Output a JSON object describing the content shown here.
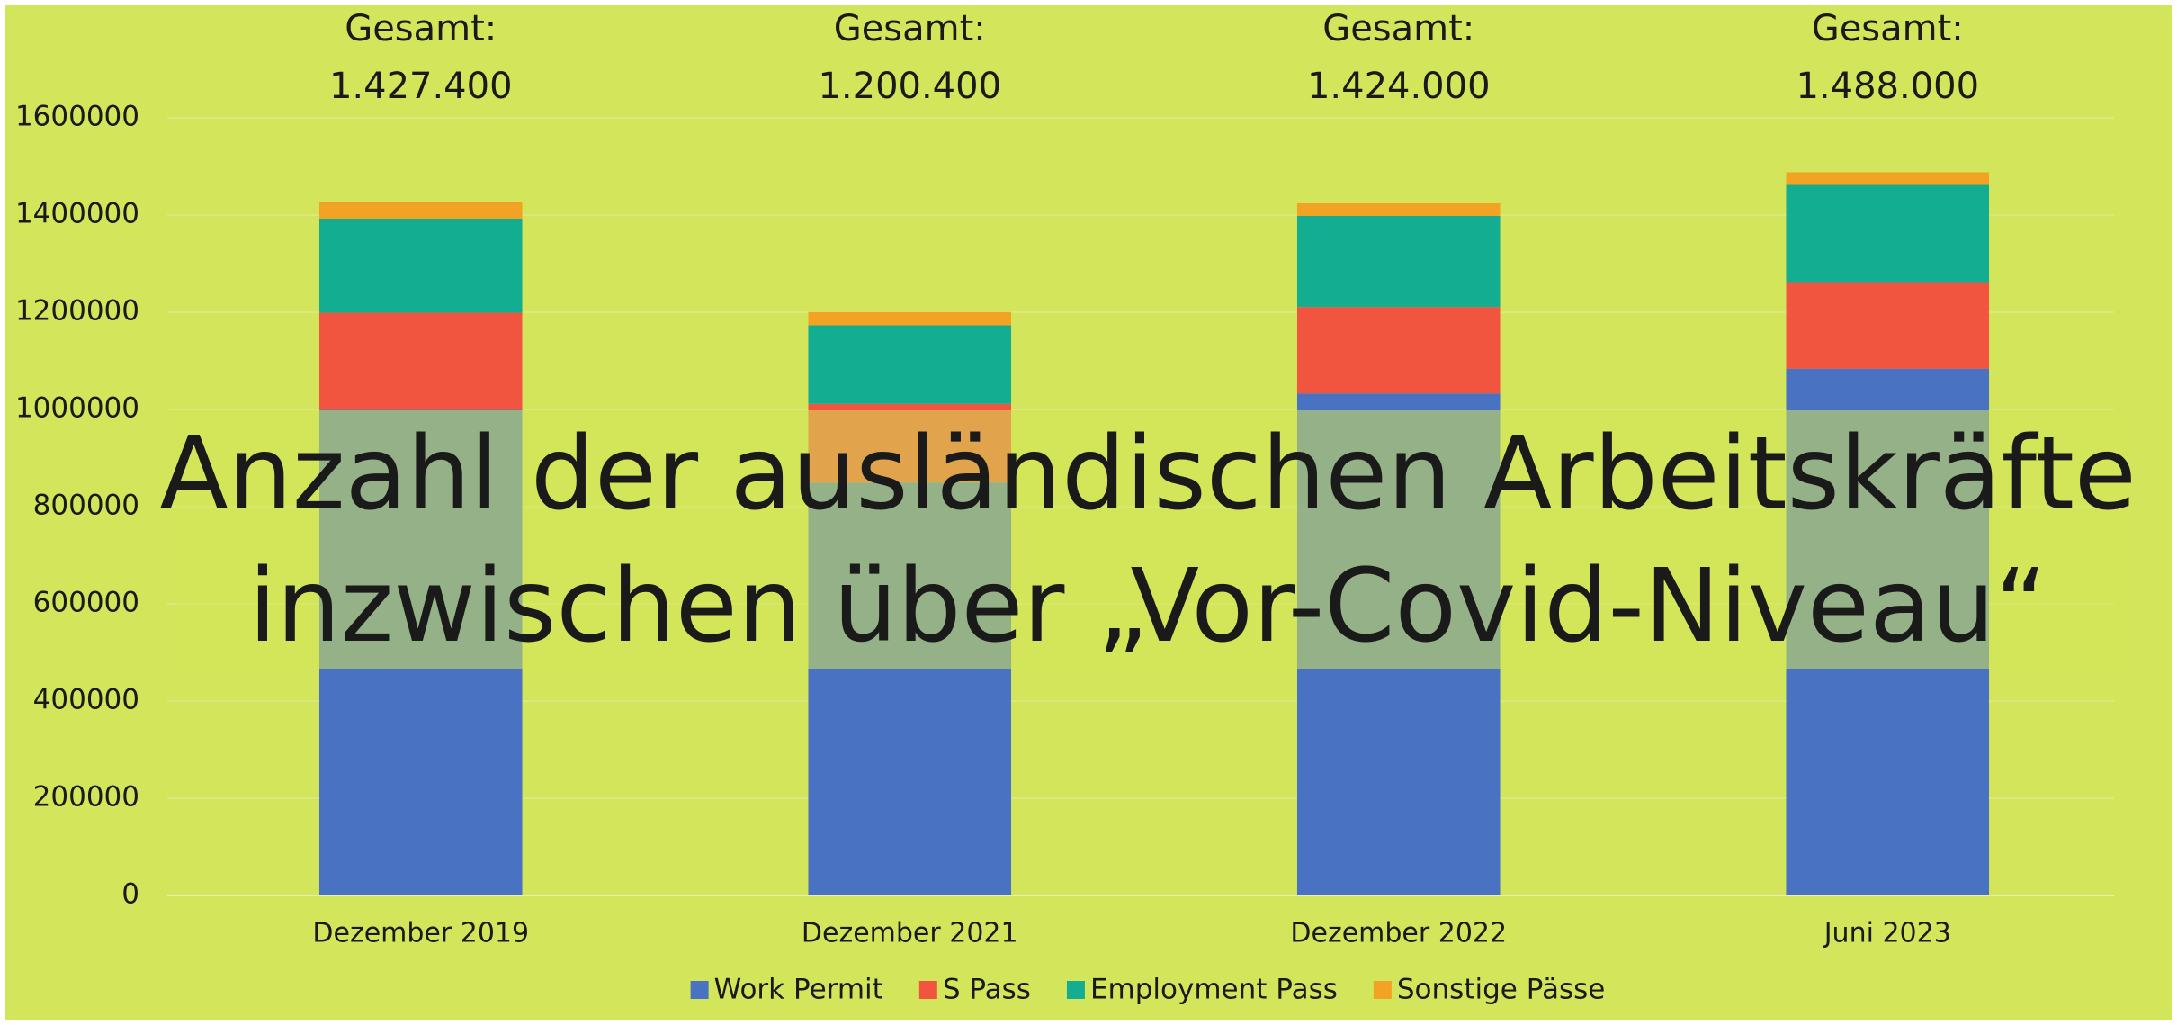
{
  "chart_data": {
    "type": "stacked_bar",
    "title": [
      "Anzahl der ausländischen Arbeitskräfte",
      "inzwischen über „Vor-Covid-Niveau“"
    ],
    "total_caption": "Gesamt:",
    "total_labels": [
      "1.427.400",
      "1.200.400",
      "1.424.000",
      "1.488.000"
    ],
    "categories": [
      "Dezember 2019",
      "Dezember 2021",
      "Dezember 2022",
      "Juni 2023"
    ],
    "series": [
      {
        "name": "Work Permit",
        "color": "#4a72c2",
        "values": [
          999000,
          849700,
          1033000,
          1084000
        ]
      },
      {
        "name": "S Pass",
        "color": "#f2553f",
        "values": [
          200000,
          161800,
          177900,
          178000
        ]
      },
      {
        "name": "Employment Pass",
        "color": "#13ae92",
        "values": [
          193700,
          161700,
          187300,
          200000
        ]
      },
      {
        "name": "Sonstige Pässe",
        "color": "#f2a323",
        "values": [
          34700,
          27200,
          25800,
          26000
        ]
      }
    ],
    "ylim": [
      0,
      1600000
    ],
    "yticks": [
      0,
      200000,
      400000,
      600000,
      800000,
      1000000,
      1200000,
      1400000,
      1600000
    ],
    "grid": true,
    "legend": "bottom"
  }
}
